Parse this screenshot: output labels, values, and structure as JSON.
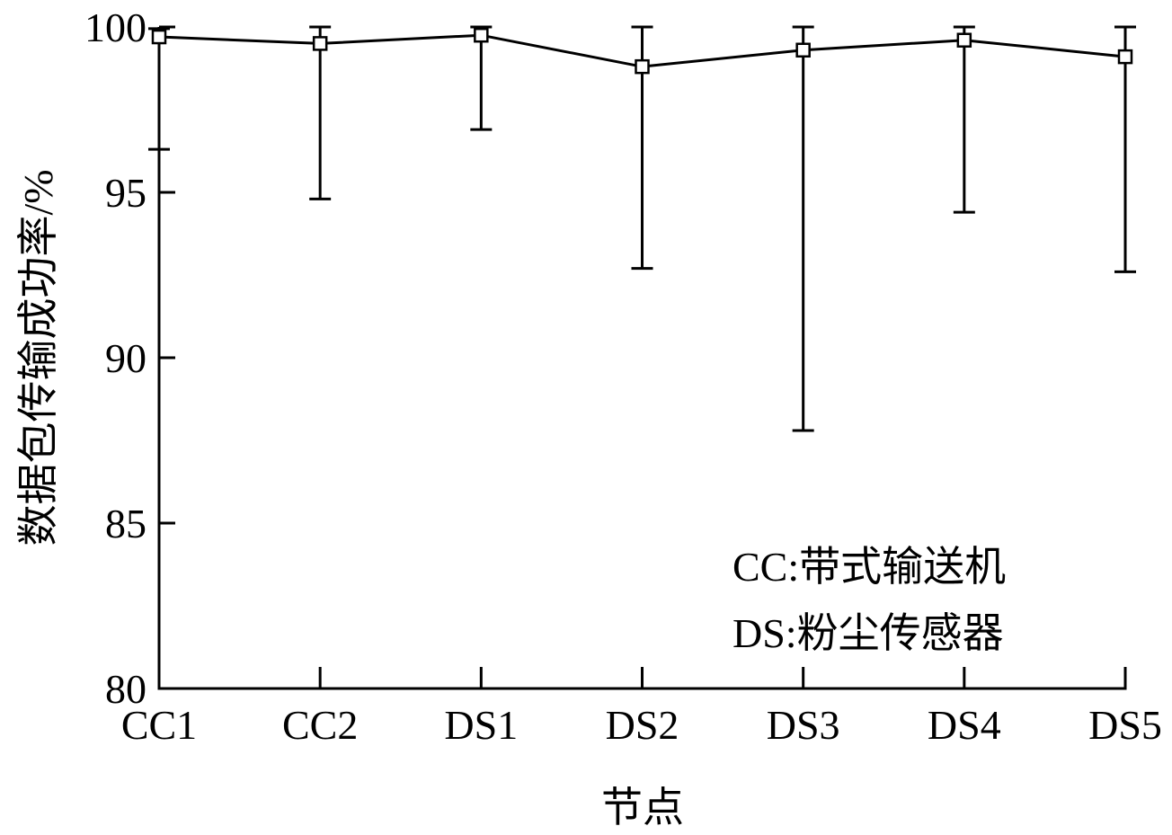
{
  "chart_data": {
    "type": "line",
    "categories": [
      "CC1",
      "CC2",
      "DS1",
      "DS2",
      "DS3",
      "DS4",
      "DS5"
    ],
    "series": [
      {
        "values": [
          99.7,
          99.5,
          99.75,
          98.8,
          99.3,
          99.6,
          99.1
        ],
        "error_low": [
          96.3,
          94.8,
          96.9,
          92.7,
          87.8,
          94.4,
          92.6
        ],
        "error_high": [
          99.95,
          100,
          100,
          100,
          100,
          100,
          100
        ]
      }
    ],
    "xlabel": "节点",
    "ylabel": "数据包传输成功率/%",
    "ylim": [
      80,
      100
    ],
    "yticks": [
      80,
      85,
      90,
      95,
      100
    ],
    "grid": false,
    "marker": "square",
    "notes": [
      "CC:带式输送机",
      "DS:粉尘传感器"
    ]
  }
}
